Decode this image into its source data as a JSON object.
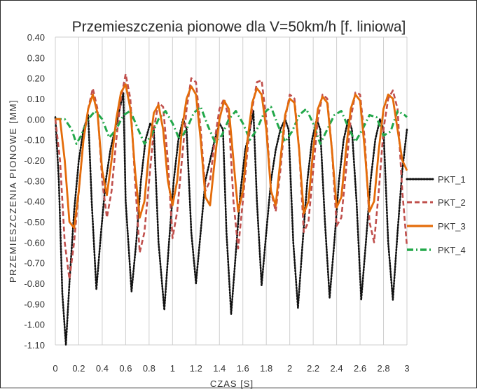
{
  "chart_data": {
    "type": "line",
    "title": "Przemieszczenia pionowe dla V=50km/h [f. liniowa]",
    "xlabel": "CZAS [S]",
    "ylabel": "PRZEMIESZCZENIA PIONOWE [MM]",
    "xlim": [
      0,
      3
    ],
    "ylim": [
      -1.1,
      0.4
    ],
    "x_ticks": [
      "0",
      "0.2",
      "0.4",
      "0.6",
      "0.8",
      "1",
      "1.2",
      "1.4",
      "1.6",
      "1.8",
      "2",
      "2.2",
      "2.4",
      "2.6",
      "2.8",
      "3"
    ],
    "y_ticks": [
      "0.40",
      "0.30",
      "0.20",
      "0.10",
      "0.00",
      "-0.10",
      "-0.20",
      "-0.30",
      "-0.40",
      "-0.50",
      "-0.60",
      "-0.70",
      "-0.80",
      "-0.90",
      "-1.00",
      "-1.10"
    ],
    "grid": "vertical",
    "legend": "right",
    "series": [
      {
        "name": "PKT_1",
        "color": "#111111",
        "dash": "dotted",
        "points": [
          [
            0.0,
            0.01
          ],
          [
            0.03,
            -0.3
          ],
          [
            0.06,
            -0.85
          ],
          [
            0.09,
            -1.1
          ],
          [
            0.12,
            -0.8
          ],
          [
            0.16,
            -0.45
          ],
          [
            0.2,
            -0.2
          ],
          [
            0.24,
            -0.05
          ],
          [
            0.28,
            0.02
          ],
          [
            0.31,
            -0.4
          ],
          [
            0.35,
            -0.83
          ],
          [
            0.39,
            -0.55
          ],
          [
            0.43,
            -0.3
          ],
          [
            0.47,
            -0.15
          ],
          [
            0.51,
            -0.05
          ],
          [
            0.55,
            0.05
          ],
          [
            0.58,
            0.13
          ],
          [
            0.6,
            -0.4
          ],
          [
            0.65,
            -0.84
          ],
          [
            0.69,
            -0.6
          ],
          [
            0.73,
            -0.3
          ],
          [
            0.77,
            -0.1
          ],
          [
            0.81,
            -0.02
          ],
          [
            0.84,
            -0.05
          ],
          [
            0.88,
            -0.6
          ],
          [
            0.93,
            -0.93
          ],
          [
            0.97,
            -0.6
          ],
          [
            1.01,
            -0.3
          ],
          [
            1.05,
            -0.1
          ],
          [
            1.09,
            0.0
          ],
          [
            1.12,
            -0.05
          ],
          [
            1.16,
            -0.55
          ],
          [
            1.2,
            -0.8
          ],
          [
            1.24,
            -0.55
          ],
          [
            1.28,
            -0.3
          ],
          [
            1.32,
            -0.2
          ],
          [
            1.36,
            -0.1
          ],
          [
            1.4,
            -0.02
          ],
          [
            1.43,
            -0.05
          ],
          [
            1.46,
            -0.55
          ],
          [
            1.5,
            -0.95
          ],
          [
            1.54,
            -0.65
          ],
          [
            1.58,
            -0.35
          ],
          [
            1.62,
            -0.15
          ],
          [
            1.66,
            -0.05
          ],
          [
            1.69,
            0.04
          ],
          [
            1.72,
            -0.4
          ],
          [
            1.76,
            -0.81
          ],
          [
            1.8,
            -0.55
          ],
          [
            1.84,
            -0.3
          ],
          [
            1.88,
            -0.15
          ],
          [
            1.92,
            -0.05
          ],
          [
            1.96,
            0.0
          ],
          [
            1.99,
            -0.05
          ],
          [
            2.03,
            -0.6
          ],
          [
            2.07,
            -0.92
          ],
          [
            2.11,
            -0.6
          ],
          [
            2.15,
            -0.3
          ],
          [
            2.19,
            -0.1
          ],
          [
            2.23,
            0.0
          ],
          [
            2.26,
            -0.05
          ],
          [
            2.3,
            -0.5
          ],
          [
            2.34,
            -0.87
          ],
          [
            2.38,
            -0.6
          ],
          [
            2.42,
            -0.3
          ],
          [
            2.46,
            -0.1
          ],
          [
            2.5,
            0.0
          ],
          [
            2.53,
            -0.05
          ],
          [
            2.57,
            -0.4
          ],
          [
            2.61,
            -0.88
          ],
          [
            2.65,
            -0.6
          ],
          [
            2.69,
            -0.3
          ],
          [
            2.73,
            -0.1
          ],
          [
            2.77,
            0.0
          ],
          [
            2.8,
            -0.05
          ],
          [
            2.84,
            -0.6
          ],
          [
            2.88,
            -0.88
          ],
          [
            2.92,
            -0.55
          ],
          [
            2.96,
            -0.25
          ],
          [
            3.0,
            -0.05
          ]
        ]
      },
      {
        "name": "PKT_2",
        "color": "#c0504d",
        "dash": "dashed",
        "points": [
          [
            0.0,
            0.0
          ],
          [
            0.04,
            -0.2
          ],
          [
            0.08,
            -0.6
          ],
          [
            0.12,
            -0.78
          ],
          [
            0.16,
            -0.6
          ],
          [
            0.2,
            -0.35
          ],
          [
            0.24,
            -0.1
          ],
          [
            0.28,
            0.05
          ],
          [
            0.32,
            0.15
          ],
          [
            0.36,
            0.05
          ],
          [
            0.4,
            -0.3
          ],
          [
            0.44,
            -0.48
          ],
          [
            0.48,
            -0.35
          ],
          [
            0.52,
            -0.1
          ],
          [
            0.56,
            0.1
          ],
          [
            0.6,
            0.22
          ],
          [
            0.64,
            0.1
          ],
          [
            0.68,
            -0.3
          ],
          [
            0.72,
            -0.65
          ],
          [
            0.76,
            -0.55
          ],
          [
            0.8,
            -0.3
          ],
          [
            0.84,
            -0.05
          ],
          [
            0.88,
            0.08
          ],
          [
            0.92,
            0.06
          ],
          [
            0.96,
            -0.2
          ],
          [
            1.0,
            -0.58
          ],
          [
            1.04,
            -0.45
          ],
          [
            1.08,
            -0.2
          ],
          [
            1.12,
            0.05
          ],
          [
            1.16,
            0.2
          ],
          [
            1.2,
            0.18
          ],
          [
            1.24,
            -0.05
          ],
          [
            1.28,
            -0.35
          ],
          [
            1.32,
            -0.3
          ],
          [
            1.36,
            -0.1
          ],
          [
            1.4,
            0.05
          ],
          [
            1.44,
            0.1
          ],
          [
            1.48,
            0.0
          ],
          [
            1.52,
            -0.4
          ],
          [
            1.56,
            -0.63
          ],
          [
            1.6,
            -0.4
          ],
          [
            1.64,
            -0.15
          ],
          [
            1.68,
            0.05
          ],
          [
            1.72,
            0.18
          ],
          [
            1.76,
            0.19
          ],
          [
            1.8,
            0.0
          ],
          [
            1.84,
            -0.35
          ],
          [
            1.88,
            -0.45
          ],
          [
            1.92,
            -0.25
          ],
          [
            1.96,
            0.0
          ],
          [
            2.0,
            0.12
          ],
          [
            2.04,
            0.1
          ],
          [
            2.08,
            -0.15
          ],
          [
            2.12,
            -0.55
          ],
          [
            2.16,
            -0.5
          ],
          [
            2.2,
            -0.25
          ],
          [
            2.24,
            0.0
          ],
          [
            2.28,
            0.12
          ],
          [
            2.32,
            0.1
          ],
          [
            2.36,
            -0.15
          ],
          [
            2.4,
            -0.52
          ],
          [
            2.44,
            -0.48
          ],
          [
            2.48,
            -0.25
          ],
          [
            2.52,
            0.0
          ],
          [
            2.56,
            0.13
          ],
          [
            2.6,
            0.12
          ],
          [
            2.64,
            -0.1
          ],
          [
            2.68,
            -0.5
          ],
          [
            2.72,
            -0.6
          ],
          [
            2.76,
            -0.35
          ],
          [
            2.8,
            -0.05
          ],
          [
            2.84,
            0.1
          ],
          [
            2.88,
            0.14
          ],
          [
            2.92,
            0.05
          ],
          [
            2.96,
            -0.35
          ],
          [
            3.0,
            -0.62
          ]
        ]
      },
      {
        "name": "PKT_3",
        "color": "#e46c0a",
        "dash": "solid",
        "points": [
          [
            0.0,
            0.0
          ],
          [
            0.04,
            0.0
          ],
          [
            0.08,
            -0.2
          ],
          [
            0.12,
            -0.5
          ],
          [
            0.16,
            -0.53
          ],
          [
            0.2,
            -0.35
          ],
          [
            0.24,
            -0.1
          ],
          [
            0.28,
            0.05
          ],
          [
            0.32,
            0.12
          ],
          [
            0.36,
            0.03
          ],
          [
            0.4,
            -0.25
          ],
          [
            0.44,
            -0.37
          ],
          [
            0.48,
            -0.2
          ],
          [
            0.52,
            0.0
          ],
          [
            0.56,
            0.13
          ],
          [
            0.6,
            0.17
          ],
          [
            0.64,
            0.05
          ],
          [
            0.68,
            -0.25
          ],
          [
            0.72,
            -0.48
          ],
          [
            0.76,
            -0.4
          ],
          [
            0.8,
            -0.15
          ],
          [
            0.84,
            0.03
          ],
          [
            0.88,
            0.07
          ],
          [
            0.92,
            -0.05
          ],
          [
            0.96,
            -0.3
          ],
          [
            1.0,
            -0.42
          ],
          [
            1.04,
            -0.3
          ],
          [
            1.08,
            -0.05
          ],
          [
            1.12,
            0.1
          ],
          [
            1.16,
            0.16
          ],
          [
            1.2,
            0.12
          ],
          [
            1.24,
            -0.1
          ],
          [
            1.28,
            -0.38
          ],
          [
            1.32,
            -0.42
          ],
          [
            1.36,
            -0.2
          ],
          [
            1.4,
            0.0
          ],
          [
            1.44,
            0.09
          ],
          [
            1.48,
            0.05
          ],
          [
            1.52,
            -0.2
          ],
          [
            1.56,
            -0.45
          ],
          [
            1.6,
            -0.35
          ],
          [
            1.64,
            -0.1
          ],
          [
            1.68,
            0.08
          ],
          [
            1.72,
            0.15
          ],
          [
            1.76,
            0.12
          ],
          [
            1.8,
            -0.05
          ],
          [
            1.84,
            -0.35
          ],
          [
            1.88,
            -0.42
          ],
          [
            1.92,
            -0.2
          ],
          [
            1.96,
            0.02
          ],
          [
            2.0,
            0.1
          ],
          [
            2.04,
            0.08
          ],
          [
            2.08,
            -0.15
          ],
          [
            2.12,
            -0.46
          ],
          [
            2.16,
            -0.4
          ],
          [
            2.2,
            -0.15
          ],
          [
            2.24,
            0.05
          ],
          [
            2.28,
            0.11
          ],
          [
            2.32,
            0.08
          ],
          [
            2.36,
            -0.15
          ],
          [
            2.4,
            -0.43
          ],
          [
            2.44,
            -0.38
          ],
          [
            2.48,
            -0.15
          ],
          [
            2.52,
            0.05
          ],
          [
            2.56,
            0.12
          ],
          [
            2.6,
            0.09
          ],
          [
            2.64,
            -0.15
          ],
          [
            2.68,
            -0.45
          ],
          [
            2.72,
            -0.4
          ],
          [
            2.76,
            -0.15
          ],
          [
            2.8,
            0.05
          ],
          [
            2.84,
            0.12
          ],
          [
            2.88,
            0.1
          ],
          [
            2.92,
            -0.05
          ],
          [
            2.96,
            -0.2
          ],
          [
            3.0,
            -0.25
          ]
        ]
      },
      {
        "name": "PKT_4",
        "color": "#22a84a",
        "dash": "dashdot",
        "points": [
          [
            0.0,
            0.0
          ],
          [
            0.08,
            0.0
          ],
          [
            0.14,
            -0.05
          ],
          [
            0.18,
            -0.12
          ],
          [
            0.22,
            -0.08
          ],
          [
            0.28,
            0.0
          ],
          [
            0.34,
            0.04
          ],
          [
            0.4,
            0.0
          ],
          [
            0.46,
            -0.09
          ],
          [
            0.52,
            -0.05
          ],
          [
            0.58,
            0.02
          ],
          [
            0.64,
            0.04
          ],
          [
            0.7,
            -0.04
          ],
          [
            0.76,
            -0.12
          ],
          [
            0.82,
            -0.08
          ],
          [
            0.88,
            0.0
          ],
          [
            0.94,
            0.04
          ],
          [
            1.0,
            -0.02
          ],
          [
            1.06,
            -0.1
          ],
          [
            1.12,
            -0.05
          ],
          [
            1.18,
            0.03
          ],
          [
            1.24,
            0.06
          ],
          [
            1.3,
            -0.03
          ],
          [
            1.36,
            -0.11
          ],
          [
            1.42,
            -0.08
          ],
          [
            1.48,
            0.0
          ],
          [
            1.54,
            0.04
          ],
          [
            1.6,
            -0.02
          ],
          [
            1.66,
            -0.1
          ],
          [
            1.72,
            -0.05
          ],
          [
            1.78,
            0.03
          ],
          [
            1.84,
            0.06
          ],
          [
            1.9,
            -0.03
          ],
          [
            1.96,
            -0.11
          ],
          [
            2.02,
            -0.06
          ],
          [
            2.08,
            0.02
          ],
          [
            2.14,
            0.05
          ],
          [
            2.2,
            -0.02
          ],
          [
            2.26,
            -0.12
          ],
          [
            2.32,
            -0.05
          ],
          [
            2.38,
            0.02
          ],
          [
            2.44,
            0.04
          ],
          [
            2.5,
            -0.04
          ],
          [
            2.56,
            -0.11
          ],
          [
            2.62,
            -0.05
          ],
          [
            2.68,
            0.02
          ],
          [
            2.74,
            0.01
          ],
          [
            2.8,
            -0.08
          ],
          [
            2.86,
            -0.06
          ],
          [
            2.92,
            0.04
          ],
          [
            2.98,
            0.02
          ],
          [
            3.0,
            0.01
          ]
        ]
      }
    ]
  }
}
